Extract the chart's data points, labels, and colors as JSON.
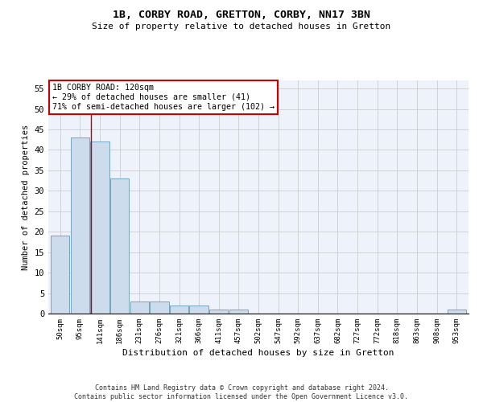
{
  "title1": "1B, CORBY ROAD, GRETTON, CORBY, NN17 3BN",
  "title2": "Size of property relative to detached houses in Gretton",
  "xlabel": "Distribution of detached houses by size in Gretton",
  "ylabel": "Number of detached properties",
  "footer1": "Contains HM Land Registry data © Crown copyright and database right 2024.",
  "footer2": "Contains public sector information licensed under the Open Government Licence v3.0.",
  "bar_edges": [
    50,
    95,
    141,
    186,
    231,
    276,
    321,
    366,
    411,
    457,
    502,
    547,
    592,
    637,
    682,
    727,
    772,
    818,
    863,
    908,
    953
  ],
  "bar_values": [
    19,
    43,
    42,
    33,
    3,
    3,
    2,
    2,
    1,
    1,
    0,
    0,
    0,
    0,
    0,
    0,
    0,
    0,
    0,
    0,
    1
  ],
  "bar_color": "#ccdcec",
  "bar_edge_color": "#6699bb",
  "property_size": 120,
  "red_line_color": "#bb0000",
  "annotation_line1": "1B CORBY ROAD: 120sqm",
  "annotation_line2": "← 29% of detached houses are smaller (41)",
  "annotation_line3": "71% of semi-detached houses are larger (102) →",
  "annotation_box_color": "#ffffff",
  "annotation_box_edge": "#cc0000",
  "ylim": [
    0,
    57
  ],
  "yticks": [
    0,
    5,
    10,
    15,
    20,
    25,
    30,
    35,
    40,
    45,
    50,
    55
  ],
  "grid_color": "#cccccc",
  "bg_color": "#eef2fa"
}
